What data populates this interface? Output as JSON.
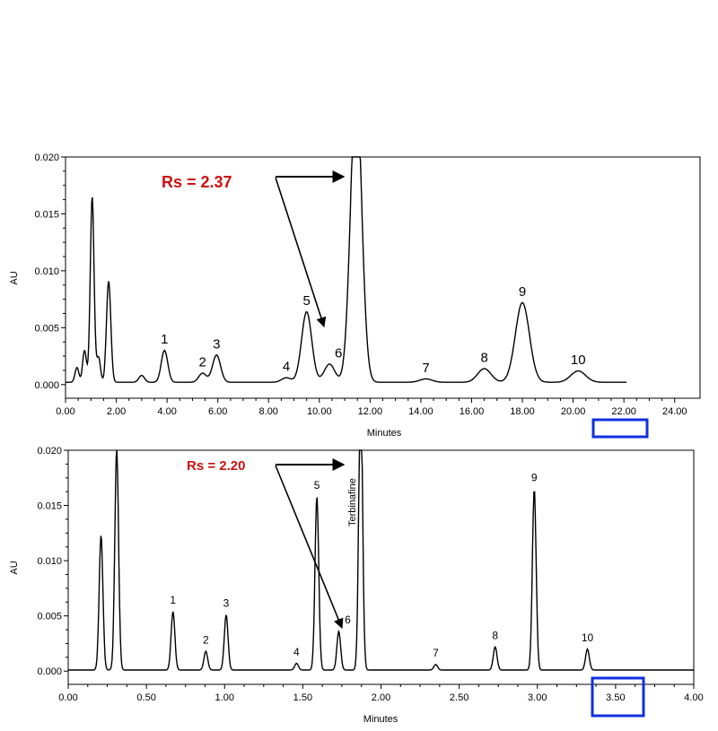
{
  "colors": {
    "trace": "#000000",
    "resolution_text": "#cc1111",
    "highlight_box": "#1030e0"
  },
  "chart_data": [
    {
      "type": "line",
      "xlabel": "Minutes",
      "ylabel": "AU",
      "xlim": [
        0,
        25
      ],
      "ylim": [
        -0.0012,
        0.02
      ],
      "x_ticks": [
        "0.00",
        "2.00",
        "4.00",
        "6.00",
        "8.00",
        "10.00",
        "12.00",
        "14.00",
        "16.00",
        "18.00",
        "20.00",
        "22.00",
        "24.00"
      ],
      "y_ticks": [
        "0.000",
        "0.005",
        "0.010",
        "0.015",
        "0.020"
      ],
      "trace_end": 22.1,
      "baseline": 0.0002,
      "peaks": [
        {
          "label": "",
          "x": 0.45,
          "y": 0.0013
        },
        {
          "label": "",
          "x": 0.75,
          "y": 0.0028
        },
        {
          "label": "",
          "x": 1.05,
          "y": 0.0163
        },
        {
          "label": "",
          "x": 1.3,
          "y": 0.0022
        },
        {
          "label": "",
          "x": 1.7,
          "y": 0.0089
        },
        {
          "label": "",
          "x": 3.0,
          "y": 0.0006
        },
        {
          "label": "1",
          "x": 3.9,
          "y": 0.0028
        },
        {
          "label": "2",
          "x": 5.4,
          "y": 0.0008
        },
        {
          "label": "3",
          "x": 5.95,
          "y": 0.0024
        },
        {
          "label": "4",
          "x": 8.7,
          "y": 0.0004
        },
        {
          "label": "5",
          "x": 9.5,
          "y": 0.0062
        },
        {
          "label": "6",
          "x": 10.4,
          "y": 0.0016
        },
        {
          "label": "",
          "x": 11.45,
          "y": 0.026
        },
        {
          "label": "7",
          "x": 14.2,
          "y": 0.0003
        },
        {
          "label": "8",
          "x": 16.5,
          "y": 0.0012
        },
        {
          "label": "9",
          "x": 18.0,
          "y": 0.007
        },
        {
          "label": "10",
          "x": 20.2,
          "y": 0.001
        }
      ],
      "annotation": "Rs = 2.37",
      "highlighted_tick": "22.00"
    },
    {
      "type": "line",
      "xlabel": "Minutes",
      "ylabel": "AU",
      "xlim": [
        0,
        4
      ],
      "ylim": [
        -0.0012,
        0.02
      ],
      "x_ticks": [
        "0.00",
        "0.50",
        "1.00",
        "1.50",
        "2.00",
        "2.50",
        "3.00",
        "3.50",
        "4.00"
      ],
      "y_ticks": [
        "0.000",
        "0.005",
        "0.010",
        "0.015",
        "0.020"
      ],
      "trace_end": 4.0,
      "baseline": 0.0001,
      "peaks": [
        {
          "label": "",
          "x": 0.21,
          "y": 0.0122
        },
        {
          "label": "",
          "x": 0.31,
          "y": 0.02
        },
        {
          "label": "1",
          "x": 0.67,
          "y": 0.0053
        },
        {
          "label": "2",
          "x": 0.88,
          "y": 0.0017
        },
        {
          "label": "3",
          "x": 1.01,
          "y": 0.005
        },
        {
          "label": "4",
          "x": 1.46,
          "y": 0.0006
        },
        {
          "label": "5",
          "x": 1.59,
          "y": 0.0157
        },
        {
          "label": "6",
          "x": 1.73,
          "y": 0.0035
        },
        {
          "label": "Terbinafine",
          "x": 1.87,
          "y": 0.026
        },
        {
          "label": "7",
          "x": 2.35,
          "y": 0.0005
        },
        {
          "label": "8",
          "x": 2.73,
          "y": 0.0021
        },
        {
          "label": "9",
          "x": 2.98,
          "y": 0.0164
        },
        {
          "label": "10",
          "x": 3.32,
          "y": 0.0019
        }
      ],
      "annotation": "Rs = 2.20",
      "highlighted_tick": "3.50"
    }
  ]
}
